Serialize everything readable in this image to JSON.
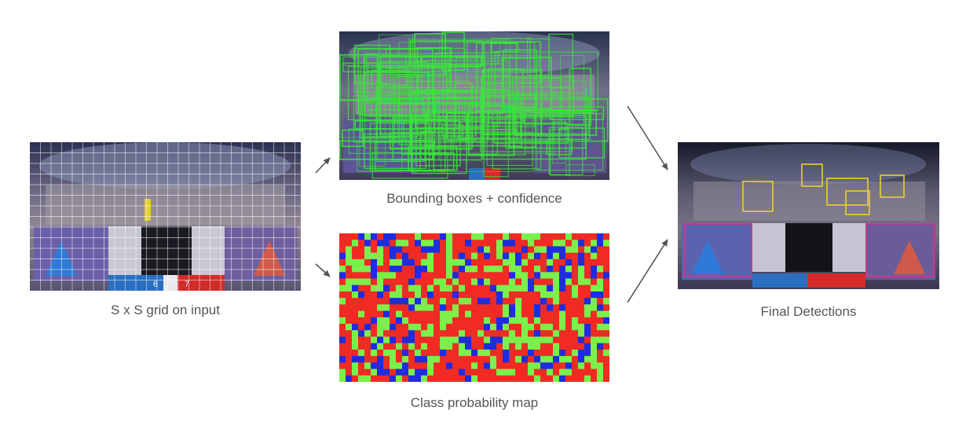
{
  "captions": {
    "grid": "S x S grid on input",
    "boxes": "Bounding boxes + confidence",
    "probability": "Class probability map",
    "detections": "Final Detections"
  },
  "class_colors": [
    "#ef2b24",
    "#7cf04a",
    "#1f2ce0"
  ],
  "grid_color": "#ffffff",
  "box_color": "#39e639",
  "detection_box_colors": [
    "#e8d22a",
    "#e0308a"
  ],
  "scoreboard": {
    "blue_score": "6",
    "red_score": "7",
    "blue_color": "#2a6fc0",
    "red_color": "#d32a2a"
  }
}
